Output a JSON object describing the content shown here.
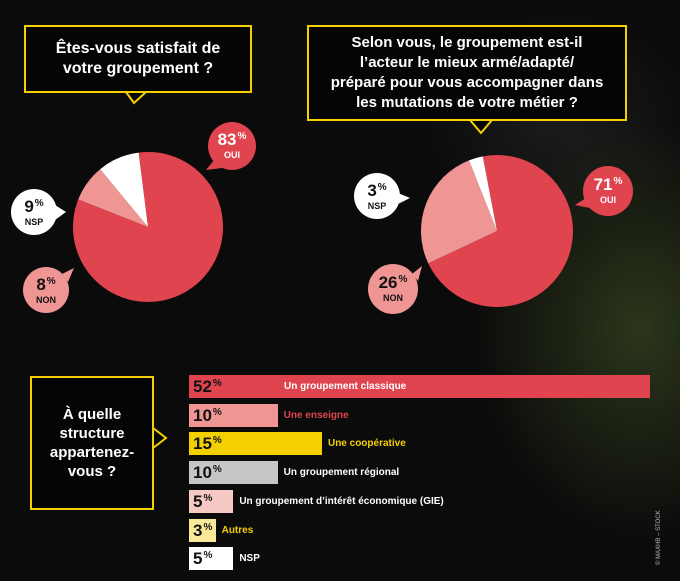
{
  "chart_data": [
    {
      "type": "pie",
      "title": "Êtes-vous satisfait de\nvotre groupement ?",
      "slices": [
        {
          "label": "OUI",
          "value": 83,
          "color": "#e0454f"
        },
        {
          "label": "NON",
          "value": 8,
          "color": "#ef9594"
        },
        {
          "label": "NSP",
          "value": 9,
          "color": "#ffffff"
        }
      ]
    },
    {
      "type": "pie",
      "title": "Selon vous, le groupement est-il\nl’acteur le mieux armé/adapté/\npréparé pour vous accompagner dans\nles mutations de votre métier ?",
      "slices": [
        {
          "label": "OUI",
          "value": 71,
          "color": "#e0454f"
        },
        {
          "label": "NON",
          "value": 26,
          "color": "#ef9594"
        },
        {
          "label": "NSP",
          "value": 3,
          "color": "#ffffff"
        }
      ]
    },
    {
      "type": "bar",
      "orientation": "horizontal",
      "title": "À quelle\nstructure\nappartenez-\nvous ?",
      "categories": [
        "Un groupement classique",
        "Une enseigne",
        "Une coopérative",
        "Un groupement régional",
        "Un groupement d’intérêt économique (GIE)",
        "Autres",
        "NSP"
      ],
      "values": [
        52,
        10,
        15,
        10,
        5,
        3,
        5
      ],
      "colors": [
        "#e0454f",
        "#ef9594",
        "#f5d000",
        "#c6c6c6",
        "#f6c9c4",
        "#fbe99a",
        "#ffffff"
      ],
      "label_colors": [
        "#ffffff",
        "#e0454f",
        "#f5d000",
        "#ffffff",
        "#ffffff",
        "#f5d000",
        "#ffffff"
      ],
      "unit": "%"
    }
  ],
  "credit": "© MAXHB – STOCK"
}
